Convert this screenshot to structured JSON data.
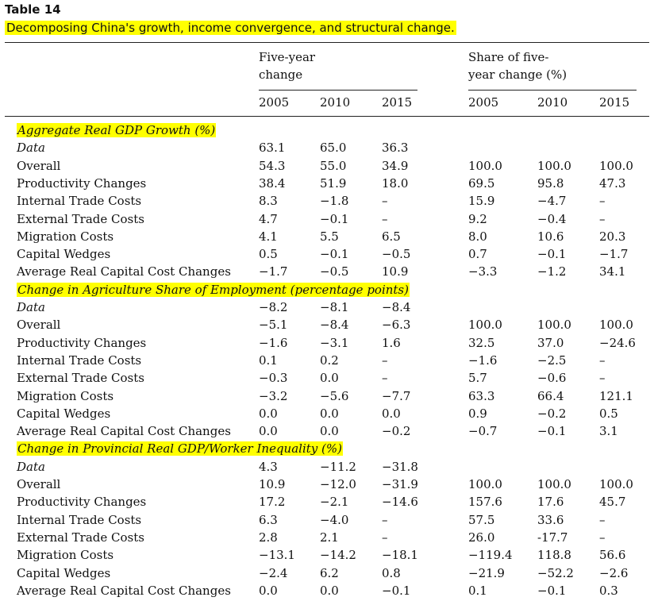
{
  "table_title": "Table 14",
  "caption": "Decomposing China's growth, income convergence, and structural change.",
  "header": {
    "group1": "Five-year\nchange",
    "group1_line1": "Five-year",
    "group1_line2": "change",
    "group2_line1": "Share of five-",
    "group2_line2": "year change (%)",
    "years": [
      "2005",
      "2010",
      "2015",
      "2005",
      "2010",
      "2015"
    ]
  },
  "sections": [
    {
      "title": "Aggregate Real GDP Growth (%)",
      "rows": [
        {
          "label": "Data",
          "italic": true,
          "cells": [
            "63.1",
            "65.0",
            "36.3",
            "",
            "",
            ""
          ]
        },
        {
          "label": "Overall",
          "cells": [
            "54.3",
            "55.0",
            "34.9",
            "100.0",
            "100.0",
            "100.0"
          ]
        },
        {
          "label": "Productivity Changes",
          "cells": [
            "38.4",
            "51.9",
            "18.0",
            "69.5",
            "95.8",
            "47.3"
          ]
        },
        {
          "label": "Internal Trade Costs",
          "cells": [
            "8.3",
            "−1.8",
            "–",
            "15.9",
            "−4.7",
            "–"
          ]
        },
        {
          "label": "External Trade Costs",
          "cells": [
            "4.7",
            "−0.1",
            "–",
            "9.2",
            "−0.4",
            "–"
          ]
        },
        {
          "label": "Migration Costs",
          "cells": [
            "4.1",
            "5.5",
            "6.5",
            "8.0",
            "10.6",
            "20.3"
          ]
        },
        {
          "label": "Capital Wedges",
          "cells": [
            "0.5",
            "−0.1",
            "−0.5",
            "0.7",
            "−0.1",
            "−1.7"
          ]
        },
        {
          "label": "Average Real Capital Cost Changes",
          "cells": [
            "−1.7",
            "−0.5",
            "10.9",
            "−3.3",
            "−1.2",
            "34.1"
          ]
        }
      ]
    },
    {
      "title": "Change in Agriculture Share of Employment (percentage points)",
      "rows": [
        {
          "label": "Data",
          "italic": true,
          "cells": [
            "−8.2",
            "−8.1",
            "−8.4",
            "",
            "",
            ""
          ]
        },
        {
          "label": "Overall",
          "cells": [
            "−5.1",
            "−8.4",
            "−6.3",
            "100.0",
            "100.0",
            "100.0"
          ]
        },
        {
          "label": "Productivity Changes",
          "cells": [
            "−1.6",
            "−3.1",
            "1.6",
            "32.5",
            "37.0",
            "−24.6"
          ]
        },
        {
          "label": "Internal Trade Costs",
          "cells": [
            "0.1",
            "0.2",
            "–",
            "−1.6",
            "−2.5",
            "–"
          ]
        },
        {
          "label": "External Trade Costs",
          "cells": [
            "−0.3",
            "0.0",
            "–",
            "5.7",
            "−0.6",
            "–"
          ]
        },
        {
          "label": "Migration Costs",
          "cells": [
            "−3.2",
            "−5.6",
            "−7.7",
            "63.3",
            "66.4",
            "121.1"
          ]
        },
        {
          "label": "Capital Wedges",
          "cells": [
            "0.0",
            "0.0",
            "0.0",
            "0.9",
            "−0.2",
            "0.5"
          ]
        },
        {
          "label": "Average Real Capital Cost Changes",
          "cells": [
            "0.0",
            "0.0",
            "−0.2",
            "−0.7",
            "−0.1",
            "3.1"
          ]
        }
      ]
    },
    {
      "title": "Change in Provincial Real GDP/Worker Inequality (%)",
      "rows": [
        {
          "label": "Data",
          "italic": true,
          "cells": [
            "4.3",
            "−11.2",
            "−31.8",
            "",
            "",
            ""
          ]
        },
        {
          "label": "Overall",
          "cells": [
            "10.9",
            "−12.0",
            "−31.9",
            "100.0",
            "100.0",
            "100.0"
          ]
        },
        {
          "label": "Productivity Changes",
          "cells": [
            "17.2",
            "−2.1",
            "−14.6",
            "157.6",
            "17.6",
            "45.7"
          ]
        },
        {
          "label": "Internal Trade Costs",
          "cells": [
            "6.3",
            "−4.0",
            "–",
            "57.5",
            "33.6",
            "–"
          ]
        },
        {
          "label": "External Trade Costs",
          "cells": [
            "2.8",
            "2.1",
            "–",
            "26.0",
            "-17.7",
            "–"
          ]
        },
        {
          "label": "Migration Costs",
          "cells": [
            "−13.1",
            "−14.2",
            "−18.1",
            "−119.4",
            "118.8",
            "56.6"
          ]
        },
        {
          "label": "Capital Wedges",
          "cells": [
            "−2.4",
            "6.2",
            "0.8",
            "−21.9",
            "−52.2",
            "−2.6"
          ]
        },
        {
          "label": "Average Real Capital Cost Changes",
          "cells": [
            "0.0",
            "0.0",
            "−0.1",
            "0.1",
            "−0.1",
            "0.3"
          ]
        }
      ]
    }
  ]
}
